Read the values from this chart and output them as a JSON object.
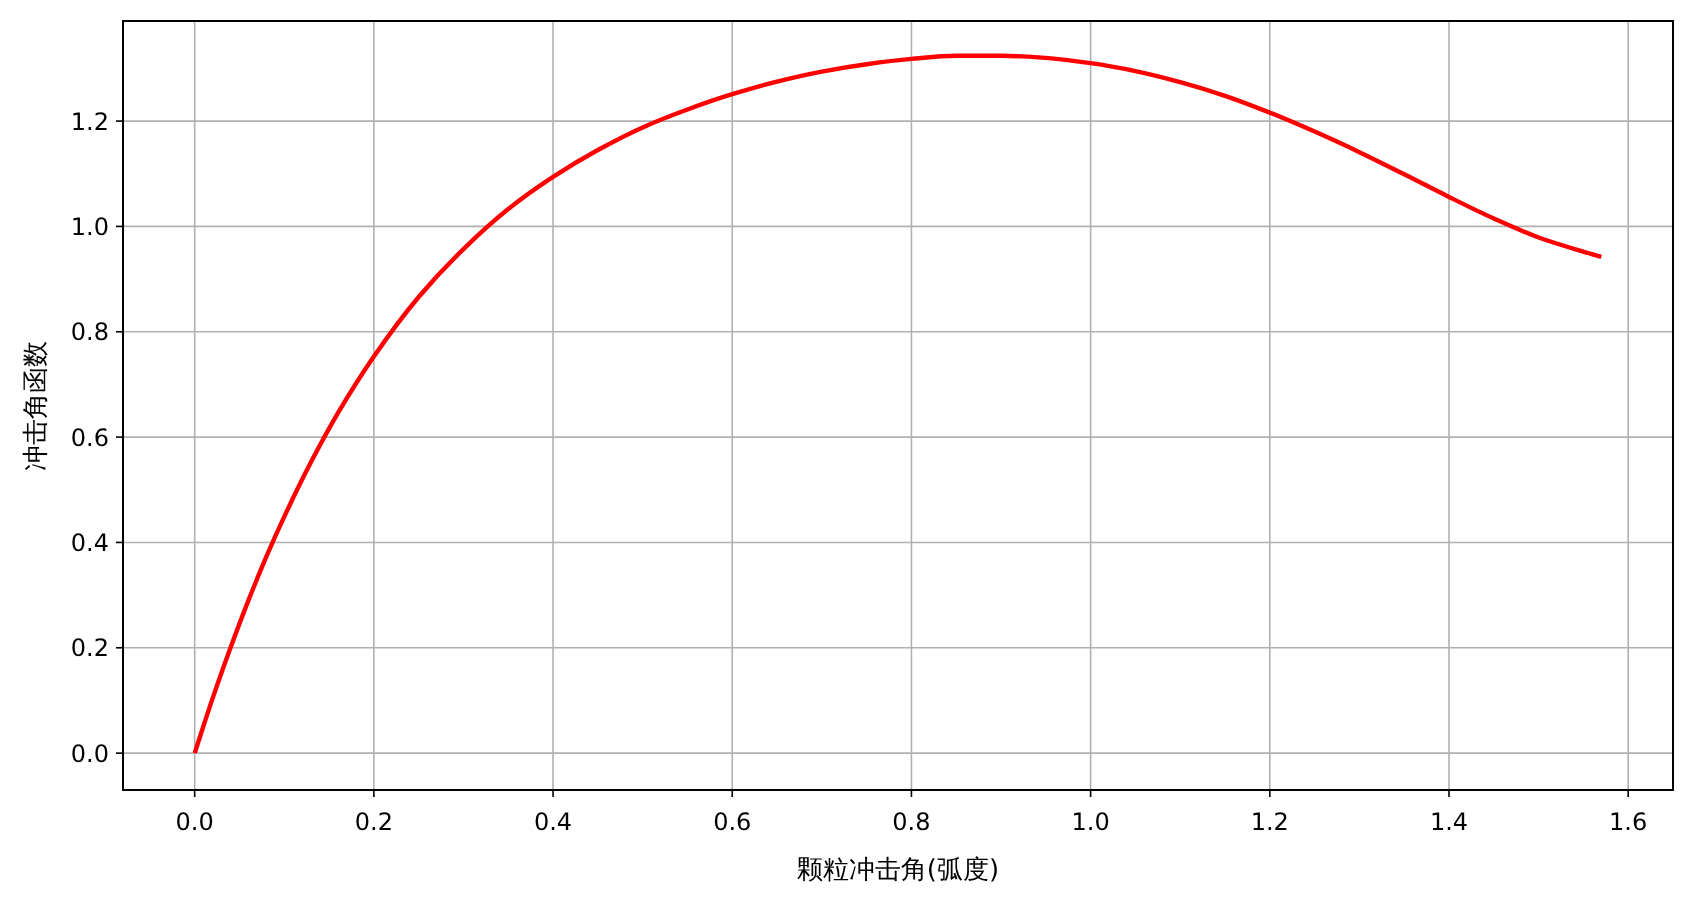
{
  "chart_data": {
    "type": "line",
    "xlabel": "颗粒冲击角(弧度)",
    "ylabel": "冲击角函数",
    "x": [
      0,
      0.02,
      0.04,
      0.06,
      0.08,
      0.1,
      0.13,
      0.16,
      0.2,
      0.25,
      0.3,
      0.35,
      0.4,
      0.45,
      0.5,
      0.55,
      0.6,
      0.65,
      0.7,
      0.75,
      0.8,
      0.85,
      0.9,
      0.95,
      1.0,
      1.05,
      1.1,
      1.15,
      1.2,
      1.25,
      1.3,
      1.35,
      1.4,
      1.45,
      1.5,
      1.57
    ],
    "series": [
      {
        "color": "#ff0000",
        "values": [
          0,
          0.104,
          0.2,
          0.29,
          0.373,
          0.449,
          0.553,
          0.646,
          0.753,
          0.866,
          0.957,
          1.033,
          1.094,
          1.145,
          1.188,
          1.222,
          1.251,
          1.275,
          1.294,
          1.308,
          1.318,
          1.324,
          1.324,
          1.32,
          1.31,
          1.295,
          1.274,
          1.248,
          1.216,
          1.18,
          1.141,
          1.099,
          1.056,
          1.015,
          0.979,
          0.942
        ]
      }
    ],
    "xlim": [
      -0.08,
      1.65
    ],
    "ylim": [
      -0.07,
      1.39
    ],
    "xticks": [
      {
        "value": 0,
        "label": "0.0"
      },
      {
        "value": 0.2,
        "label": "0.2"
      },
      {
        "value": 0.4,
        "label": "0.4"
      },
      {
        "value": 0.6,
        "label": "0.6"
      },
      {
        "value": 0.8,
        "label": "0.8"
      },
      {
        "value": 1,
        "label": "1.0"
      },
      {
        "value": 1.2,
        "label": "1.2"
      },
      {
        "value": 1.4,
        "label": "1.4"
      },
      {
        "value": 1.6,
        "label": "1.6"
      }
    ],
    "yticks": [
      {
        "value": 0,
        "label": "0.0"
      },
      {
        "value": 0.2,
        "label": "0.2"
      },
      {
        "value": 0.4,
        "label": "0.4"
      },
      {
        "value": 0.6,
        "label": "0.6"
      },
      {
        "value": 0.8,
        "label": "0.8"
      },
      {
        "value": 1,
        "label": "1.0"
      },
      {
        "value": 1.2,
        "label": "1.2"
      }
    ],
    "grid": true,
    "line_style": "solid"
  }
}
